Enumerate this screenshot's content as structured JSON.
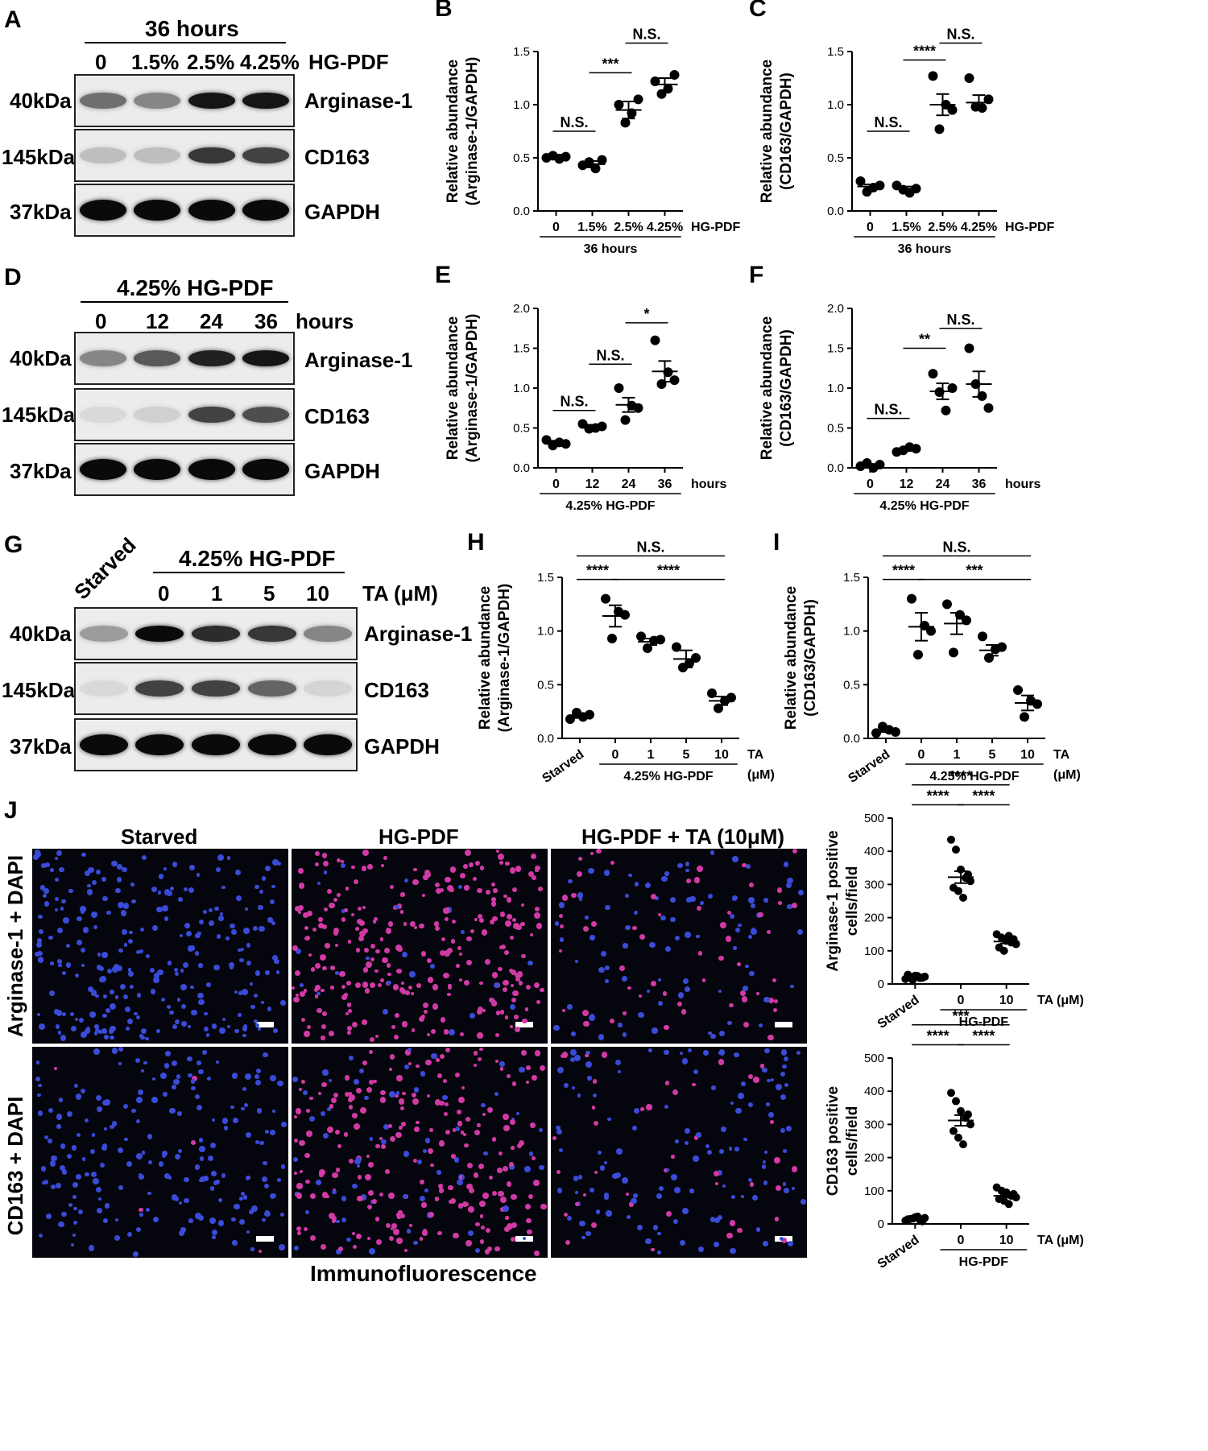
{
  "panels": {
    "A": {
      "label": "A",
      "condition": "36 hours",
      "lanes": [
        "0",
        "1.5%",
        "2.5%",
        "4.25%"
      ],
      "lane_suffix": "HG-PDF",
      "rows": [
        {
          "kda": "40kDa",
          "name": "Arginase-1",
          "intensity": [
            0.55,
            0.45,
            0.95,
            0.95
          ]
        },
        {
          "kda": "145kDa",
          "name": "CD163",
          "intensity": [
            0.2,
            0.2,
            0.8,
            0.75
          ]
        },
        {
          "kda": "37kDa",
          "name": "GAPDH",
          "intensity": [
            1,
            1,
            1,
            1
          ]
        }
      ]
    },
    "D": {
      "label": "D",
      "condition": "4.25% HG-PDF",
      "lanes": [
        "0",
        "12",
        "24",
        "36"
      ],
      "lane_suffix": "hours",
      "rows": [
        {
          "kda": "40kDa",
          "name": "Arginase-1",
          "intensity": [
            0.45,
            0.65,
            0.9,
            0.95
          ]
        },
        {
          "kda": "145kDa",
          "name": "CD163",
          "intensity": [
            0.08,
            0.12,
            0.75,
            0.7
          ]
        },
        {
          "kda": "37kDa",
          "name": "GAPDH",
          "intensity": [
            1,
            1,
            1,
            1
          ]
        }
      ]
    },
    "G": {
      "label": "G",
      "condition": "4.25% HG-PDF",
      "first_lane": "Starved",
      "lanes": [
        "0",
        "1",
        "5",
        "10"
      ],
      "lane_suffix": "TA (μM)",
      "rows": [
        {
          "kda": "40kDa",
          "name": "Arginase-1",
          "intensity": [
            0.35,
            1,
            0.85,
            0.8,
            0.45
          ]
        },
        {
          "kda": "145kDa",
          "name": "CD163",
          "intensity": [
            0.08,
            0.75,
            0.75,
            0.6,
            0.1
          ]
        },
        {
          "kda": "37kDa",
          "name": "GAPDH",
          "intensity": [
            1,
            1,
            1,
            1,
            1
          ]
        }
      ]
    },
    "J": {
      "label": "J",
      "columns": [
        "Starved",
        "HG-PDF",
        "HG-PDF + TA (10μM)"
      ],
      "rows": [
        "Arginase-1 + DAPI",
        "CD163 + DAPI"
      ],
      "footer": "Immunofluorescence"
    }
  },
  "colors": {
    "dot": "#000000",
    "if_background": "#05050d",
    "dapi": "#3a4bd8",
    "marker": "#d23aa5"
  },
  "chart_data": [
    {
      "id": "B",
      "type": "scatter",
      "label": "B",
      "ylabel": [
        "Relative abundance",
        "(Arginase-1/GAPDH)"
      ],
      "ylim": [
        0,
        1.5
      ],
      "yticks": [
        "0.0",
        "0.5",
        "1.0",
        "1.5"
      ],
      "categories": [
        "0",
        "1.5%",
        "2.5%",
        "4.25%"
      ],
      "suffix": "HG-PDF",
      "group_label": "36 hours",
      "points": [
        [
          0.5,
          0.52,
          0.49,
          0.51
        ],
        [
          0.43,
          0.46,
          0.4,
          0.48
        ],
        [
          1.0,
          0.83,
          0.92,
          1.05
        ],
        [
          1.22,
          1.1,
          1.15,
          1.28
        ]
      ],
      "means": [
        0.51,
        0.44,
        0.95,
        1.19
      ],
      "sems": [
        0.02,
        0.03,
        0.08,
        0.06
      ],
      "sig": [
        {
          "from": 0,
          "to": 1,
          "text": "N.S.",
          "y": 0.75
        },
        {
          "from": 1,
          "to": 2,
          "text": "***",
          "y": 1.3
        },
        {
          "from": 2,
          "to": 3,
          "text": "N.S.",
          "y": 1.58
        }
      ]
    },
    {
      "id": "C",
      "type": "scatter",
      "label": "C",
      "ylabel": [
        "Relative abundance",
        "(CD163/GAPDH)"
      ],
      "ylim": [
        0,
        1.5
      ],
      "yticks": [
        "0.0",
        "0.5",
        "1.0",
        "1.5"
      ],
      "categories": [
        "0",
        "1.5%",
        "2.5%",
        "4.25%"
      ],
      "suffix": "HG-PDF",
      "group_label": "36 hours",
      "points": [
        [
          0.28,
          0.18,
          0.22,
          0.24
        ],
        [
          0.24,
          0.2,
          0.17,
          0.21
        ],
        [
          1.27,
          0.77,
          1.0,
          0.95
        ],
        [
          1.25,
          0.98,
          0.97,
          1.05
        ]
      ],
      "means": [
        0.23,
        0.21,
        1.0,
        1.02
      ],
      "sems": [
        0.02,
        0.02,
        0.1,
        0.07
      ],
      "sig": [
        {
          "from": 0,
          "to": 1,
          "text": "N.S.",
          "y": 0.75
        },
        {
          "from": 1,
          "to": 2,
          "text": "****",
          "y": 1.42
        },
        {
          "from": 2,
          "to": 3,
          "text": "N.S.",
          "y": 1.58
        }
      ]
    },
    {
      "id": "E",
      "type": "scatter",
      "label": "E",
      "ylabel": [
        "Relative abundance",
        "(Arginase-1/GAPDH)"
      ],
      "ylim": [
        0,
        2.0
      ],
      "yticks": [
        "0.0",
        "0.5",
        "1.0",
        "1.5",
        "2.0"
      ],
      "categories": [
        "0",
        "12",
        "24",
        "36"
      ],
      "suffix": "hours",
      "group_label": "4.25% HG-PDF",
      "points": [
        [
          0.35,
          0.28,
          0.32,
          0.3
        ],
        [
          0.55,
          0.49,
          0.5,
          0.52
        ],
        [
          1.0,
          0.6,
          0.78,
          0.75
        ],
        [
          1.6,
          1.05,
          1.2,
          1.1
        ]
      ],
      "means": [
        0.32,
        0.52,
        0.79,
        1.21
      ],
      "sems": [
        0.02,
        0.02,
        0.09,
        0.13
      ],
      "sig": [
        {
          "from": 0,
          "to": 1,
          "text": "N.S.",
          "y": 0.72
        },
        {
          "from": 1,
          "to": 2,
          "text": "N.S.",
          "y": 1.3
        },
        {
          "from": 2,
          "to": 3,
          "text": "*",
          "y": 1.82
        }
      ]
    },
    {
      "id": "F",
      "type": "scatter",
      "label": "F",
      "ylabel": [
        "Relative abundance",
        "(CD163/GAPDH)"
      ],
      "ylim": [
        0,
        2.0
      ],
      "yticks": [
        "0.0",
        "0.5",
        "1.0",
        "1.5",
        "2.0"
      ],
      "categories": [
        "0",
        "12",
        "24",
        "36"
      ],
      "suffix": "hours",
      "group_label": "4.25% HG-PDF",
      "points": [
        [
          0.02,
          0.06,
          0.0,
          0.04
        ],
        [
          0.2,
          0.22,
          0.26,
          0.24
        ],
        [
          1.18,
          0.95,
          0.72,
          1.0
        ],
        [
          1.5,
          1.05,
          0.9,
          0.75
        ]
      ],
      "means": [
        0.03,
        0.23,
        0.96,
        1.05
      ],
      "sems": [
        0.015,
        0.015,
        0.1,
        0.16
      ],
      "sig": [
        {
          "from": 0,
          "to": 1,
          "text": "N.S.",
          "y": 0.62
        },
        {
          "from": 1,
          "to": 2,
          "text": "**",
          "y": 1.5
        },
        {
          "from": 2,
          "to": 3,
          "text": "N.S.",
          "y": 1.75
        }
      ]
    },
    {
      "id": "H",
      "type": "scatter",
      "label": "H",
      "ylabel": [
        "Relative abundance",
        "(Arginase-1/GAPDH)"
      ],
      "ylim": [
        0,
        1.5
      ],
      "yticks": [
        "0.0",
        "0.5",
        "1.0",
        "1.5"
      ],
      "categories": [
        "Starved",
        "0",
        "1",
        "5",
        "10"
      ],
      "suffix": "TA",
      "suffix2": "(μM)",
      "group_label": "4.25% HG-PDF",
      "group_from": 1,
      "points": [
        [
          0.18,
          0.24,
          0.2,
          0.22
        ],
        [
          1.3,
          0.93,
          1.18,
          1.15
        ],
        [
          0.95,
          0.84,
          0.91,
          0.92
        ],
        [
          0.85,
          0.66,
          0.7,
          0.75
        ],
        [
          0.42,
          0.28,
          0.35,
          0.38
        ]
      ],
      "means": [
        0.21,
        1.14,
        0.9,
        0.74,
        0.35
      ],
      "sems": [
        0.02,
        0.1,
        0.03,
        0.08,
        0.04
      ],
      "sig": [
        {
          "from": 0,
          "to": 1,
          "text": "****",
          "y": 1.48
        },
        {
          "from": 1,
          "to": 4,
          "text": "****",
          "y": 1.48
        },
        {
          "from": 0,
          "to": 4,
          "text": "N.S.",
          "y": 1.7
        }
      ]
    },
    {
      "id": "I",
      "type": "scatter",
      "label": "I",
      "ylabel": [
        "Relative abundance",
        "(CD163/GAPDH)"
      ],
      "ylim": [
        0,
        1.5
      ],
      "yticks": [
        "0.0",
        "0.5",
        "1.0",
        "1.5"
      ],
      "categories": [
        "Starved",
        "0",
        "1",
        "5",
        "10"
      ],
      "suffix": "TA",
      "suffix2": "(μM)",
      "group_label": "4.25% HG-PDF",
      "group_from": 1,
      "points": [
        [
          0.05,
          0.11,
          0.08,
          0.06
        ],
        [
          1.3,
          0.78,
          1.05,
          1.0
        ],
        [
          1.25,
          0.8,
          1.15,
          1.1
        ],
        [
          0.95,
          0.75,
          0.83,
          0.85
        ],
        [
          0.45,
          0.2,
          0.35,
          0.32
        ]
      ],
      "means": [
        0.08,
        1.04,
        1.07,
        0.82,
        0.33
      ],
      "sems": [
        0.02,
        0.13,
        0.1,
        0.05,
        0.07
      ],
      "sig": [
        {
          "from": 0,
          "to": 1,
          "text": "****",
          "y": 1.48
        },
        {
          "from": 1,
          "to": 4,
          "text": "***",
          "y": 1.48
        },
        {
          "from": 0,
          "to": 4,
          "text": "N.S.",
          "y": 1.7
        }
      ]
    },
    {
      "id": "J1",
      "type": "scatter",
      "ylabel": [
        "Arginase-1 positive",
        "cells/field"
      ],
      "ylim": [
        0,
        500
      ],
      "yticks": [
        "0",
        "100",
        "200",
        "300",
        "400",
        "500"
      ],
      "categories": [
        "Starved",
        "0",
        "10"
      ],
      "suffix": "TA (μM)",
      "group_label": "HG-PDF",
      "group_from": 1,
      "points": [
        [
          15,
          20,
          25,
          18,
          22,
          28,
          12,
          24,
          19
        ],
        [
          435,
          405,
          345,
          320,
          310,
          290,
          280,
          260,
          330
        ],
        [
          150,
          140,
          130,
          125,
          120,
          110,
          100,
          145,
          135
        ]
      ],
      "means": [
        20,
        322,
        128
      ],
      "sems": [
        3,
        18,
        6
      ],
      "sig": [
        {
          "from": 0,
          "to": 1,
          "text": "****",
          "y": 540
        },
        {
          "from": 1,
          "to": 2,
          "text": "****",
          "y": 540
        },
        {
          "from": 0,
          "to": 2,
          "text": "****",
          "y": 600
        }
      ]
    },
    {
      "id": "J2",
      "type": "scatter",
      "ylabel": [
        "CD163 positive",
        "cells/field"
      ],
      "ylim": [
        0,
        500
      ],
      "yticks": [
        "0",
        "100",
        "200",
        "300",
        "400",
        "500"
      ],
      "categories": [
        "Starved",
        "0",
        "10"
      ],
      "suffix": "TA (μM)",
      "group_label": "HG-PDF",
      "group_from": 1,
      "points": [
        [
          10,
          15,
          20,
          12,
          18,
          14,
          16,
          22,
          8
        ],
        [
          395,
          370,
          340,
          320,
          300,
          280,
          260,
          240,
          330
        ],
        [
          110,
          100,
          95,
          85,
          80,
          75,
          70,
          60,
          90
        ]
      ],
      "means": [
        15,
        312,
        85
      ],
      "sems": [
        2,
        16,
        5
      ],
      "sig": [
        {
          "from": 0,
          "to": 1,
          "text": "****",
          "y": 540
        },
        {
          "from": 1,
          "to": 2,
          "text": "****",
          "y": 540
        },
        {
          "from": 0,
          "to": 2,
          "text": "***",
          "y": 600
        }
      ]
    }
  ]
}
